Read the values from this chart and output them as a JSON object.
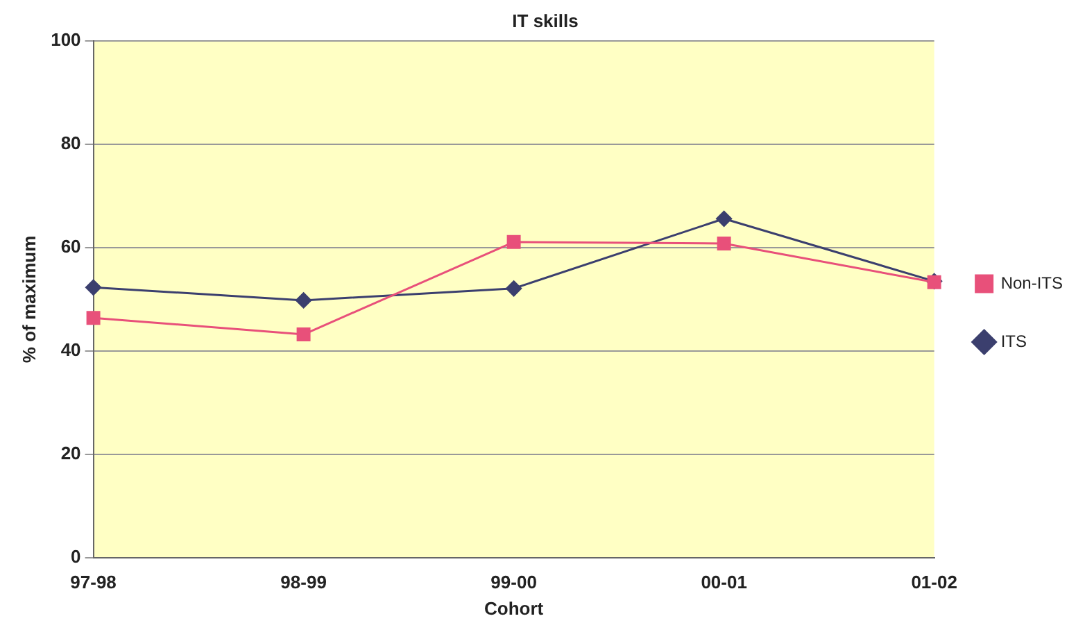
{
  "chart_data": {
    "type": "line",
    "title": "IT skills",
    "xlabel": "Cohort",
    "ylabel": "% of maximum",
    "categories": [
      "97-98",
      "98-99",
      "99-00",
      "00-01",
      "01-02"
    ],
    "series": [
      {
        "name": "ITS",
        "color": "#3b3f6e",
        "marker": "diamond",
        "values": [
          52.3,
          49.8,
          52.1,
          65.6,
          53.5
        ]
      },
      {
        "name": "Non-ITS",
        "color": "#e8507a",
        "marker": "square",
        "values": [
          46.4,
          43.2,
          61.1,
          60.8,
          53.3
        ]
      }
    ],
    "ylim": [
      0,
      100
    ],
    "yticks": [
      0,
      20,
      40,
      60,
      80,
      100
    ],
    "grid": "y",
    "legend": "right",
    "line_style": "solid"
  }
}
